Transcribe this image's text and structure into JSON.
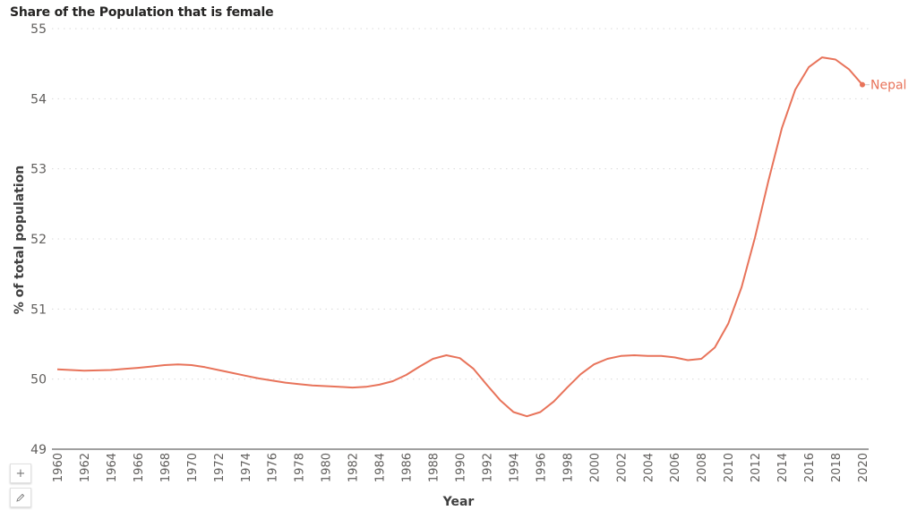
{
  "title": "Share of the Population that is female",
  "controls": {
    "add_icon": "plus-icon",
    "edit_icon": "pencil-icon"
  },
  "chart_data": {
    "type": "line",
    "title": "Share of the Population that is female",
    "xlabel": "Year",
    "ylabel": "% of total population",
    "ylim": [
      49,
      55
    ],
    "yticks": [
      49,
      50,
      51,
      52,
      53,
      54,
      55
    ],
    "xticks": [
      1960,
      1962,
      1964,
      1966,
      1968,
      1970,
      1972,
      1974,
      1976,
      1978,
      1980,
      1982,
      1984,
      1986,
      1988,
      1990,
      1992,
      1994,
      1996,
      1998,
      2000,
      2002,
      2004,
      2006,
      2008,
      2010,
      2012,
      2014,
      2016,
      2018,
      2020
    ],
    "grid": "horizontal dotted",
    "legend": "inline label at line end",
    "series": [
      {
        "name": "Nepal",
        "color": "#E8735A",
        "x": [
          1960,
          1961,
          1962,
          1963,
          1964,
          1965,
          1966,
          1967,
          1968,
          1969,
          1970,
          1971,
          1972,
          1973,
          1974,
          1975,
          1976,
          1977,
          1978,
          1979,
          1980,
          1981,
          1982,
          1983,
          1984,
          1985,
          1986,
          1987,
          1988,
          1989,
          1990,
          1991,
          1992,
          1993,
          1994,
          1995,
          1996,
          1997,
          1998,
          1999,
          2000,
          2001,
          2002,
          2003,
          2004,
          2005,
          2006,
          2007,
          2008,
          2009,
          2010,
          2011,
          2012,
          2013,
          2014,
          2015,
          2016,
          2017,
          2018,
          2019,
          2020
        ],
        "values": [
          50.14,
          50.13,
          50.12,
          50.125,
          50.13,
          50.145,
          50.16,
          50.18,
          50.2,
          50.21,
          50.2,
          50.17,
          50.13,
          50.09,
          50.05,
          50.01,
          49.98,
          49.95,
          49.93,
          49.91,
          49.9,
          49.89,
          49.88,
          49.89,
          49.92,
          49.97,
          50.06,
          50.18,
          50.29,
          50.34,
          50.3,
          50.15,
          49.92,
          49.7,
          49.53,
          49.47,
          49.53,
          49.68,
          49.88,
          50.07,
          50.21,
          50.29,
          50.33,
          50.34,
          50.33,
          50.33,
          50.31,
          50.27,
          50.29,
          50.45,
          50.79,
          51.31,
          52.02,
          52.83,
          53.58,
          54.13,
          54.45,
          54.59,
          54.56,
          54.42,
          54.2
        ]
      }
    ]
  }
}
